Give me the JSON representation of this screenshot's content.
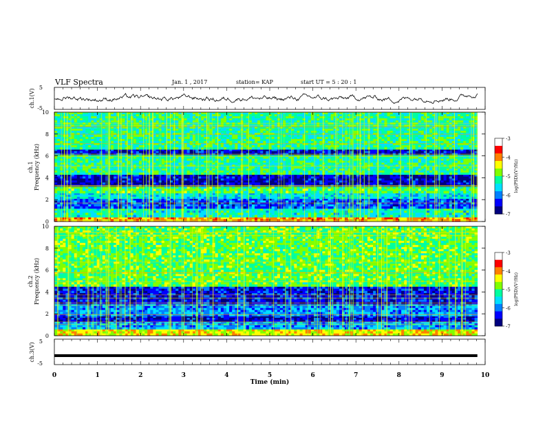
{
  "header": {
    "title": "VLF Spectra",
    "date": "Jan. 1 , 2017",
    "station": "station= KAP",
    "start": "start  UT  =   5 : 20 : 1"
  },
  "colorbar_label": "log(PSD)(V²/Hz)",
  "colors": {
    "colormap": [
      "#00007f",
      "#0000ff",
      "#0080ff",
      "#00e0ff",
      "#00ffa0",
      "#80ff00",
      "#ffff00",
      "#ff8000",
      "#ff0000",
      "#ffffff"
    ]
  },
  "chart_data": [
    {
      "type": "line",
      "ylabel": "ch.1(V)",
      "ylim": [
        -5,
        5
      ],
      "yticks": [
        "5",
        "-5"
      ],
      "xlim": [
        0,
        10
      ],
      "series": [
        {
          "shape": "noisy waveform oscillating about 0 V, rising to about +2 V near 9.5 min"
        }
      ]
    },
    {
      "type": "heatmap",
      "ylabel": "ch.1\nFrequency (kHz)",
      "ylim": [
        0,
        10
      ],
      "yticks": [
        "0",
        "2",
        "4",
        "6",
        "8",
        "10"
      ],
      "xlim": [
        0,
        10
      ],
      "colorbar": {
        "ticks": [
          "-3",
          "-4",
          "-5",
          "-6",
          "-7"
        ],
        "range": [
          -7,
          -3
        ]
      },
      "bands": [
        {
          "f0": 0.0,
          "f1": 0.4,
          "level": 0.85
        },
        {
          "f0": 0.4,
          "f1": 1.2,
          "level": 0.45
        },
        {
          "f0": 1.2,
          "f1": 2.1,
          "level": 0.2
        },
        {
          "f0": 2.1,
          "f1": 2.6,
          "level": 0.4
        },
        {
          "f0": 2.6,
          "f1": 3.2,
          "level": 0.55
        },
        {
          "f0": 3.2,
          "f1": 4.3,
          "level": 0.06
        },
        {
          "f0": 4.3,
          "f1": 6.1,
          "level": 0.5
        },
        {
          "f0": 6.1,
          "f1": 6.6,
          "level": 0.1
        },
        {
          "f0": 6.6,
          "f1": 10.0,
          "level": 0.5
        }
      ]
    },
    {
      "type": "heatmap",
      "ylabel": "ch.2\nFrequency (kHz)",
      "ylim": [
        0,
        10
      ],
      "yticks": [
        "0",
        "2",
        "4",
        "6",
        "8",
        "10"
      ],
      "xlim": [
        0,
        10
      ],
      "colorbar": {
        "ticks": [
          "-3",
          "-4",
          "-5",
          "-6",
          "-7"
        ],
        "range": [
          -7,
          -3
        ]
      },
      "bands": [
        {
          "f0": 0.0,
          "f1": 0.6,
          "level": 0.75
        },
        {
          "f0": 0.6,
          "f1": 1.3,
          "level": 0.3
        },
        {
          "f0": 1.3,
          "f1": 1.8,
          "level": 0.08
        },
        {
          "f0": 1.8,
          "f1": 2.9,
          "level": 0.28
        },
        {
          "f0": 2.9,
          "f1": 4.5,
          "level": 0.12
        },
        {
          "f0": 4.5,
          "f1": 10.0,
          "level": 0.58
        }
      ]
    },
    {
      "type": "line",
      "ylabel": "ch.3(V)",
      "ylim": [
        -5,
        5
      ],
      "yticks": [
        "5",
        "-5"
      ],
      "xlim": [
        0,
        10
      ],
      "xlabel": "Time (min)",
      "xticks": [
        "0",
        "1",
        "2",
        "3",
        "4",
        "5",
        "6",
        "7",
        "8",
        "9",
        "10"
      ],
      "series": [
        {
          "constant": -1.5
        }
      ]
    }
  ]
}
